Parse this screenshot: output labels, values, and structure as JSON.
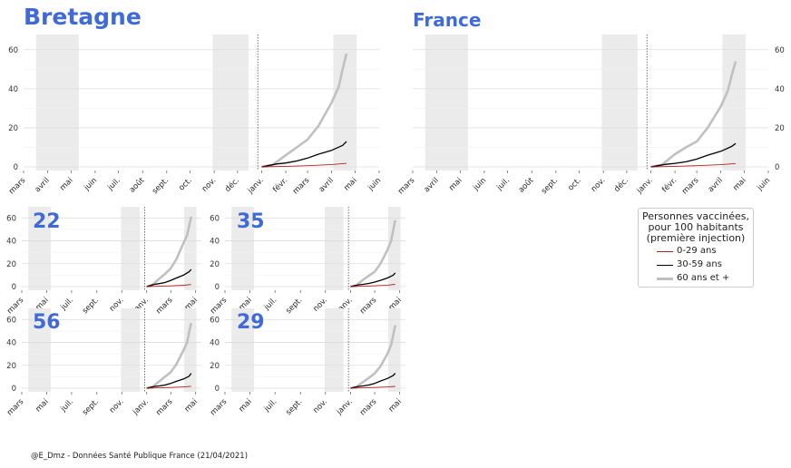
{
  "colors": {
    "title": "#3f6ad8",
    "young": "#b22222",
    "middle": "#000000",
    "old": "#c0c0c0",
    "shade": "#ebebeb",
    "grid": "#dddddd"
  },
  "credit": "@E_Dmz - Données Santé Publique France (21/04/2021)",
  "legend": {
    "title_lines": [
      "Personnes vaccinées,",
      "pour 100 habitants",
      "(première injection)"
    ],
    "items": [
      "0-29 ans",
      "30-59 ans",
      "60 ans et +"
    ]
  },
  "chart_data": [
    {
      "type": "line",
      "title": "Bretagne",
      "x_ticks": [
        "mars",
        "avril",
        "mai",
        "juin",
        "juil.",
        "août",
        "sept.",
        "oct.",
        "nov.",
        "déc.",
        "janv.",
        "févr.",
        "mars",
        "avril",
        "mai",
        "juin"
      ],
      "y_ticks": [
        "0",
        "20",
        "40",
        "60"
      ],
      "ylim": [
        0,
        65
      ],
      "y_axis_side": "left",
      "series": [
        {
          "name": "0-29 ans",
          "x": [
            "2021-01-01",
            "2021-02-01",
            "2021-03-01",
            "2021-04-01",
            "2021-04-20"
          ],
          "values": [
            0,
            0.3,
            0.6,
            1.2,
            1.8
          ]
        },
        {
          "name": "30-59 ans",
          "x": [
            "2021-01-01",
            "2021-01-20",
            "2021-02-01",
            "2021-02-15",
            "2021-03-01",
            "2021-03-15",
            "2021-04-01",
            "2021-04-15",
            "2021-04-20"
          ],
          "values": [
            0,
            1.5,
            2.0,
            3.0,
            4.5,
            6.5,
            8.5,
            11.0,
            13.0
          ]
        },
        {
          "name": "60 ans et +",
          "x": [
            "2021-01-01",
            "2021-01-15",
            "2021-02-01",
            "2021-02-15",
            "2021-03-01",
            "2021-03-15",
            "2021-04-01",
            "2021-04-10",
            "2021-04-15",
            "2021-04-20"
          ],
          "values": [
            0,
            1.0,
            6.0,
            10.0,
            14.0,
            21.0,
            33.0,
            41.0,
            50.0,
            58.0
          ]
        }
      ]
    },
    {
      "type": "line",
      "title": "France",
      "x_ticks": [
        "mars",
        "avril",
        "mai",
        "juin",
        "juil.",
        "août",
        "sept.",
        "oct.",
        "nov.",
        "déc.",
        "janv.",
        "févr.",
        "mars",
        "avril",
        "mai",
        "juin"
      ],
      "y_ticks": [
        "0",
        "20",
        "40",
        "60"
      ],
      "ylim": [
        0,
        65
      ],
      "y_axis_side": "right",
      "series": [
        {
          "name": "0-29 ans",
          "x": [
            "2021-01-01",
            "2021-02-01",
            "2021-03-01",
            "2021-04-01",
            "2021-04-20"
          ],
          "values": [
            0,
            0.3,
            0.6,
            1.1,
            1.7
          ]
        },
        {
          "name": "30-59 ans",
          "x": [
            "2021-01-01",
            "2021-01-20",
            "2021-02-01",
            "2021-02-15",
            "2021-03-01",
            "2021-03-15",
            "2021-04-01",
            "2021-04-15",
            "2021-04-20"
          ],
          "values": [
            0,
            1.3,
            1.8,
            2.6,
            4.0,
            6.0,
            8.0,
            10.5,
            12.0
          ]
        },
        {
          "name": "60 ans et +",
          "x": [
            "2021-01-01",
            "2021-01-15",
            "2021-02-01",
            "2021-02-15",
            "2021-03-01",
            "2021-03-15",
            "2021-04-01",
            "2021-04-10",
            "2021-04-15",
            "2021-04-20"
          ],
          "values": [
            0,
            1.0,
            6.5,
            10.0,
            13.0,
            20.0,
            31.0,
            39.0,
            47.0,
            54.0
          ]
        }
      ]
    },
    {
      "type": "line",
      "title": "22",
      "x_ticks": [
        "mars",
        "mai",
        "juil.",
        "sept.",
        "nov.",
        "janv.",
        "mars",
        "mai"
      ],
      "y_ticks": [
        "0",
        "20",
        "40",
        "60"
      ],
      "ylim": [
        0,
        65
      ],
      "y_axis_side": "left",
      "series": [
        {
          "name": "0-29 ans",
          "x": [
            "2021-01-01",
            "2021-02-01",
            "2021-03-01",
            "2021-04-01",
            "2021-04-20"
          ],
          "values": [
            0,
            0.3,
            0.6,
            1.2,
            1.8
          ]
        },
        {
          "name": "30-59 ans",
          "x": [
            "2021-01-01",
            "2021-01-20",
            "2021-02-01",
            "2021-02-15",
            "2021-03-01",
            "2021-03-15",
            "2021-04-01",
            "2021-04-15",
            "2021-04-20"
          ],
          "values": [
            0,
            2.0,
            2.6,
            3.6,
            5.5,
            7.5,
            10.0,
            13.0,
            15.0
          ]
        },
        {
          "name": "60 ans et +",
          "x": [
            "2021-01-01",
            "2021-01-15",
            "2021-02-01",
            "2021-02-15",
            "2021-03-01",
            "2021-03-15",
            "2021-04-01",
            "2021-04-10",
            "2021-04-15",
            "2021-04-20"
          ],
          "values": [
            0,
            1.5,
            7.0,
            11.0,
            16.0,
            24.0,
            38.0,
            45.0,
            53.0,
            61.0
          ]
        }
      ]
    },
    {
      "type": "line",
      "title": "35",
      "x_ticks": [
        "mars",
        "mai",
        "juil.",
        "sept.",
        "nov.",
        "janv.",
        "mars",
        "mai"
      ],
      "y_ticks": [
        "0",
        "20",
        "40",
        "60"
      ],
      "ylim": [
        0,
        65
      ],
      "y_axis_side": "left",
      "series": [
        {
          "name": "0-29 ans",
          "x": [
            "2021-01-01",
            "2021-02-01",
            "2021-03-01",
            "2021-04-01",
            "2021-04-20"
          ],
          "values": [
            0,
            0.3,
            0.7,
            1.3,
            2.0
          ]
        },
        {
          "name": "30-59 ans",
          "x": [
            "2021-01-01",
            "2021-01-20",
            "2021-02-01",
            "2021-02-15",
            "2021-03-01",
            "2021-03-15",
            "2021-04-01",
            "2021-04-15",
            "2021-04-20"
          ],
          "values": [
            0,
            1.5,
            2.0,
            2.8,
            4.0,
            5.5,
            7.5,
            10.0,
            12.0
          ]
        },
        {
          "name": "60 ans et +",
          "x": [
            "2021-01-01",
            "2021-01-15",
            "2021-02-01",
            "2021-02-15",
            "2021-03-01",
            "2021-03-15",
            "2021-04-01",
            "2021-04-10",
            "2021-04-15",
            "2021-04-20"
          ],
          "values": [
            0,
            1.0,
            6.0,
            9.5,
            13.0,
            20.0,
            32.0,
            40.0,
            49.0,
            58.0
          ]
        }
      ]
    },
    {
      "type": "line",
      "title": "56",
      "x_ticks": [
        "mars",
        "mai",
        "juil.",
        "sept.",
        "nov.",
        "janv.",
        "mars",
        "mai"
      ],
      "y_ticks": [
        "0",
        "20",
        "40",
        "60"
      ],
      "ylim": [
        0,
        65
      ],
      "y_axis_side": "left",
      "series": [
        {
          "name": "0-29 ans",
          "x": [
            "2021-01-01",
            "2021-02-01",
            "2021-03-01",
            "2021-04-01",
            "2021-04-20"
          ],
          "values": [
            0,
            0.3,
            0.6,
            1.1,
            1.7
          ]
        },
        {
          "name": "30-59 ans",
          "x": [
            "2021-01-01",
            "2021-01-20",
            "2021-02-01",
            "2021-02-15",
            "2021-03-01",
            "2021-03-15",
            "2021-04-01",
            "2021-04-15",
            "2021-04-20"
          ],
          "values": [
            0,
            1.5,
            2.0,
            2.8,
            4.2,
            6.0,
            8.0,
            10.5,
            13.0
          ]
        },
        {
          "name": "60 ans et +",
          "x": [
            "2021-01-01",
            "2021-01-15",
            "2021-02-01",
            "2021-02-15",
            "2021-03-01",
            "2021-03-15",
            "2021-04-01",
            "2021-04-10",
            "2021-04-15",
            "2021-04-20"
          ],
          "values": [
            0,
            1.0,
            6.0,
            10.0,
            14.0,
            21.0,
            33.0,
            40.0,
            49.0,
            57.0
          ]
        }
      ]
    },
    {
      "type": "line",
      "title": "29",
      "x_ticks": [
        "mars",
        "mai",
        "juil.",
        "sept.",
        "nov.",
        "janv.",
        "mars",
        "mai"
      ],
      "y_ticks": [
        "0",
        "20",
        "40",
        "60"
      ],
      "ylim": [
        0,
        65
      ],
      "y_axis_side": "left",
      "series": [
        {
          "name": "0-29 ans",
          "x": [
            "2021-01-01",
            "2021-02-01",
            "2021-03-01",
            "2021-04-01",
            "2021-04-20"
          ],
          "values": [
            0,
            0.3,
            0.6,
            1.1,
            1.6
          ]
        },
        {
          "name": "30-59 ans",
          "x": [
            "2021-01-01",
            "2021-01-20",
            "2021-02-01",
            "2021-02-15",
            "2021-03-01",
            "2021-03-15",
            "2021-04-01",
            "2021-04-15",
            "2021-04-20"
          ],
          "values": [
            0,
            1.5,
            2.0,
            2.8,
            4.2,
            6.3,
            8.5,
            11.0,
            13.0
          ]
        },
        {
          "name": "60 ans et +",
          "x": [
            "2021-01-01",
            "2021-01-15",
            "2021-02-01",
            "2021-02-15",
            "2021-03-01",
            "2021-03-15",
            "2021-04-01",
            "2021-04-10",
            "2021-04-15",
            "2021-04-20"
          ],
          "values": [
            0,
            1.0,
            5.5,
            9.0,
            13.0,
            19.0,
            30.0,
            38.0,
            46.0,
            55.0
          ]
        }
      ]
    }
  ]
}
